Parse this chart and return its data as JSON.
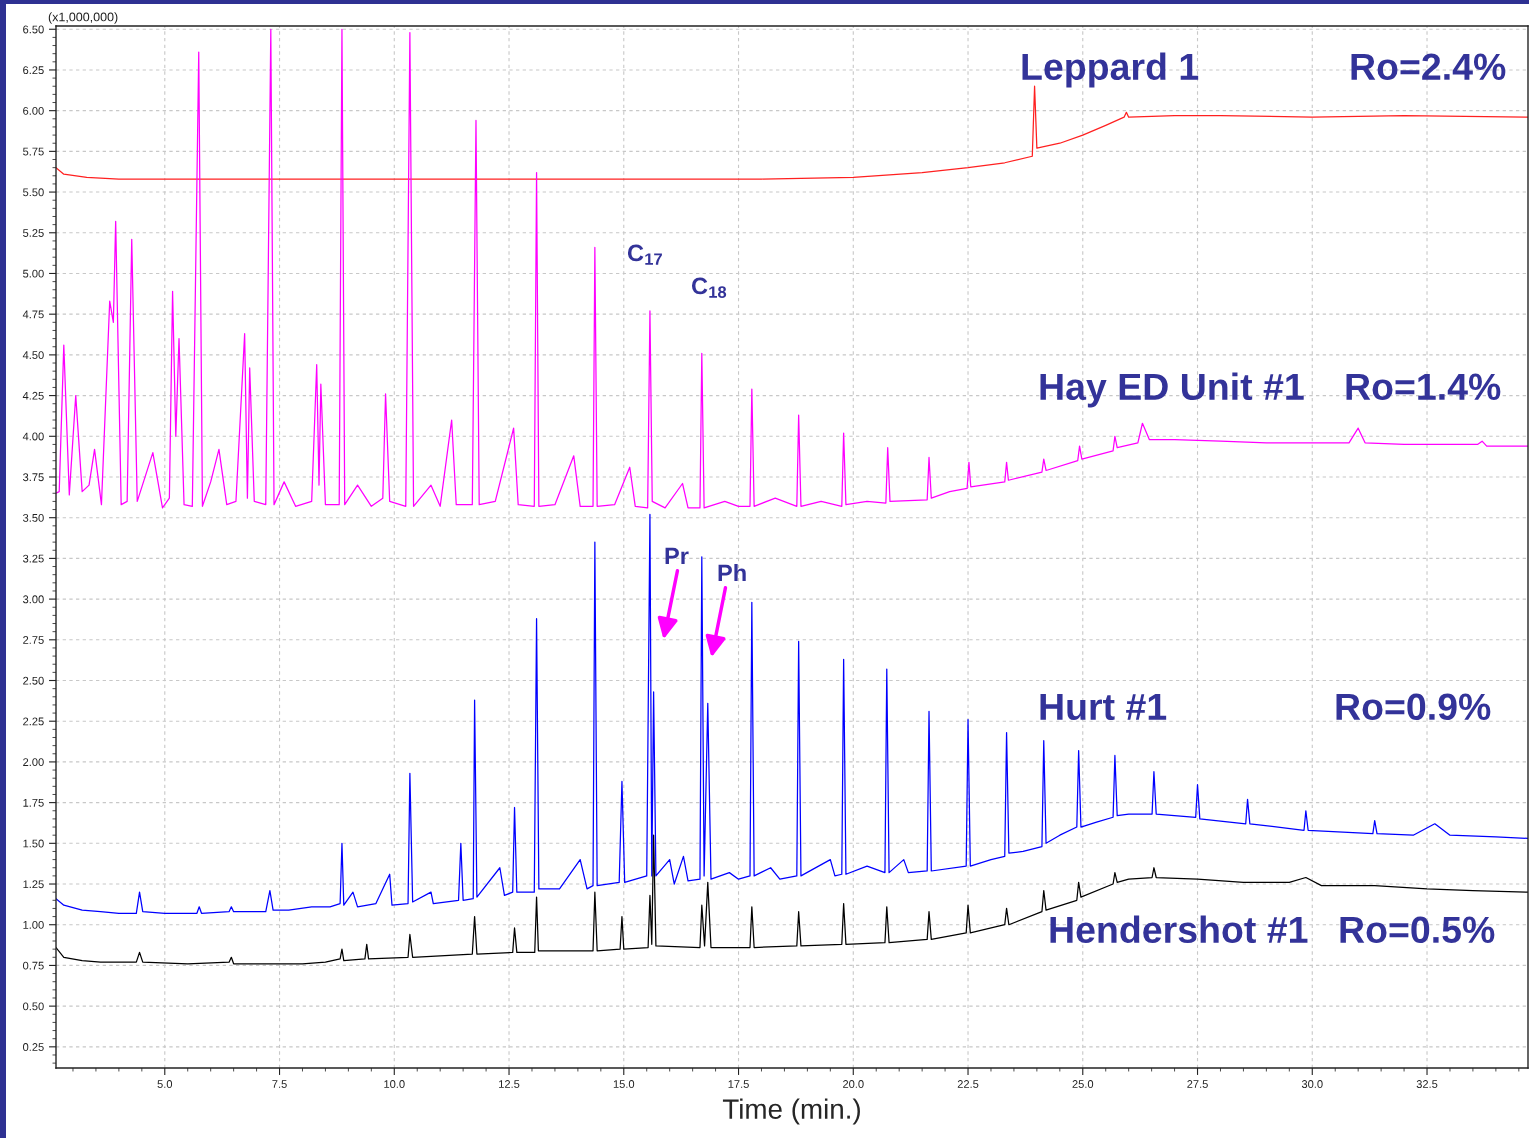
{
  "chart_data": {
    "type": "line",
    "xlabel": "Time (min.)",
    "xlim": [
      2.63,
      34.7
    ],
    "ylim": [
      0.12,
      6.52
    ],
    "xticks": [
      {
        "value": 5,
        "label": "5.0"
      },
      7.5,
      {
        "value": 10,
        "label": "10.0"
      },
      12.5,
      {
        "value": 15,
        "label": "15.0"
      },
      17.5,
      {
        "value": 20,
        "label": "20.0"
      },
      22.5,
      {
        "value": 25,
        "label": "25.0"
      },
      27.5,
      {
        "value": 30,
        "label": "30.0"
      },
      32.5
    ],
    "yticks": [
      {
        "value": 0.25,
        "label": "0.25"
      },
      {
        "value": 0.5,
        "label": "0.50"
      },
      {
        "value": 0.75,
        "label": "0.75"
      },
      {
        "value": 1.0,
        "label": "1.00"
      },
      {
        "value": 1.25,
        "label": "1.25"
      },
      {
        "value": 1.5,
        "label": "1.50"
      },
      {
        "value": 1.75,
        "label": "1.75"
      },
      {
        "value": 2.0,
        "label": "2.00"
      },
      {
        "value": 2.25,
        "label": "2.25"
      },
      {
        "value": 2.5,
        "label": "2.50"
      },
      {
        "value": 2.75,
        "label": "2.75"
      },
      {
        "value": 3.0,
        "label": "3.00"
      },
      {
        "value": 3.25,
        "label": "3.25"
      },
      {
        "value": 3.5,
        "label": "3.50"
      },
      {
        "value": 3.75,
        "label": "3.75"
      },
      {
        "value": 4.0,
        "label": "4.00"
      },
      {
        "value": 4.25,
        "label": "4.25"
      },
      {
        "value": 4.5,
        "label": "4.50"
      },
      {
        "value": 4.75,
        "label": "4.75"
      },
      {
        "value": 5.0,
        "label": "5.00"
      },
      {
        "value": 5.25,
        "label": "5.25"
      },
      {
        "value": 5.5,
        "label": "5.50"
      },
      {
        "value": 5.75,
        "label": "5.75"
      },
      {
        "value": 6.0,
        "label": "6.00"
      },
      {
        "value": 6.25,
        "label": "6.25"
      },
      {
        "value": 6.5,
        "label": "6.50"
      }
    ],
    "grid": true,
    "marker": "none",
    "line_style": "solid",
    "annotations": [
      "(x1,000,000)",
      "Ro=2.4%",
      "Ro=1.4%",
      "Ro=0.9%",
      "Ro=0.5%",
      "C$_{17}$",
      "C$_{18}$",
      "Pr",
      "Ph"
    ],
    "series": [
      {
        "name": "Leppard 1",
        "color": "#ff2020",
        "x": [
          2.63,
          2.8,
          3.3,
          4.0,
          10,
          15,
          18,
          20,
          21.5,
          22.5,
          23.3,
          23.9,
          23.95,
          24.0,
          24.5,
          25.0,
          25.5,
          25.9,
          25.95,
          26.0,
          27.0,
          28.0,
          30.0,
          32.0,
          34.7
        ],
        "values": [
          5.65,
          5.61,
          5.59,
          5.58,
          5.58,
          5.58,
          5.58,
          5.59,
          5.62,
          5.65,
          5.68,
          5.72,
          6.15,
          5.77,
          5.8,
          5.85,
          5.91,
          5.96,
          5.99,
          5.96,
          5.97,
          5.97,
          5.96,
          5.97,
          5.96
        ]
      },
      {
        "name": "Hay ED Unit #1",
        "color": "#ff00ff",
        "x": [
          2.63,
          2.7,
          2.8,
          2.92,
          3.06,
          3.2,
          3.35,
          3.47,
          3.62,
          3.8,
          3.88,
          3.93,
          4.05,
          4.18,
          4.28,
          4.4,
          4.74,
          4.95,
          5.1,
          5.17,
          5.24,
          5.31,
          5.42,
          5.6,
          5.74,
          5.82,
          6.0,
          6.18,
          6.35,
          6.55,
          6.74,
          6.8,
          6.85,
          6.95,
          7.2,
          7.31,
          7.38,
          7.6,
          7.85,
          8.2,
          8.31,
          8.36,
          8.4,
          8.5,
          8.8,
          8.86,
          8.92,
          9.2,
          9.5,
          9.75,
          9.81,
          9.9,
          10.25,
          10.34,
          10.42,
          10.8,
          11.0,
          11.25,
          11.35,
          11.7,
          11.78,
          11.85,
          12.2,
          12.6,
          12.7,
          13.05,
          13.1,
          13.15,
          13.5,
          13.91,
          14.05,
          14.33,
          14.37,
          14.42,
          14.8,
          15.13,
          15.25,
          15.52,
          15.57,
          15.62,
          15.9,
          16.28,
          16.4,
          16.66,
          16.7,
          16.75,
          17.2,
          17.5,
          17.75,
          17.79,
          17.84,
          18.3,
          18.77,
          18.81,
          18.86,
          19.3,
          19.75,
          19.79,
          19.84,
          20.3,
          20.71,
          20.75,
          20.8,
          21.61,
          21.65,
          21.7,
          22.1,
          22.48,
          22.52,
          22.56,
          23.3,
          23.34,
          23.38,
          24.11,
          24.15,
          24.2,
          24.89,
          24.93,
          24.98,
          25.66,
          25.7,
          25.75,
          26.2,
          26.3,
          26.45,
          27.0,
          28.0,
          29.0,
          30.8,
          31.0,
          31.15,
          32.0,
          33.6,
          33.7,
          33.8,
          34.7
        ],
        "values": [
          3.65,
          3.66,
          4.56,
          3.64,
          4.25,
          3.66,
          3.7,
          3.92,
          3.58,
          4.83,
          4.7,
          5.32,
          3.58,
          3.6,
          5.21,
          3.6,
          3.9,
          3.56,
          3.62,
          4.89,
          4.0,
          4.6,
          3.58,
          3.57,
          6.36,
          3.57,
          3.72,
          3.92,
          3.58,
          3.6,
          4.63,
          3.62,
          4.42,
          3.6,
          3.58,
          6.5,
          3.58,
          3.72,
          3.57,
          3.6,
          4.44,
          3.7,
          4.32,
          3.58,
          3.58,
          6.5,
          3.58,
          3.7,
          3.57,
          3.62,
          4.26,
          3.6,
          3.57,
          6.48,
          3.57,
          3.7,
          3.57,
          4.1,
          3.58,
          3.58,
          5.94,
          3.58,
          3.6,
          4.05,
          3.58,
          3.57,
          5.62,
          3.57,
          3.58,
          3.88,
          3.57,
          3.57,
          5.16,
          3.57,
          3.58,
          3.81,
          3.57,
          3.56,
          4.77,
          3.6,
          3.56,
          3.71,
          3.56,
          3.56,
          4.51,
          3.56,
          3.6,
          3.57,
          3.57,
          4.29,
          3.57,
          3.62,
          3.57,
          4.13,
          3.57,
          3.6,
          3.57,
          4.02,
          3.58,
          3.6,
          3.59,
          3.93,
          3.6,
          3.61,
          3.87,
          3.62,
          3.66,
          3.68,
          3.84,
          3.69,
          3.72,
          3.84,
          3.73,
          3.78,
          3.86,
          3.79,
          3.85,
          3.94,
          3.86,
          3.91,
          4.0,
          3.93,
          3.96,
          4.08,
          3.98,
          3.98,
          3.97,
          3.96,
          3.96,
          4.05,
          3.96,
          3.95,
          3.95,
          3.97,
          3.94,
          3.94
        ]
      },
      {
        "name": "Hurt #1",
        "color": "#0000ff",
        "x": [
          2.63,
          2.8,
          3.2,
          3.6,
          4.0,
          4.38,
          4.45,
          4.52,
          5.0,
          5.7,
          5.75,
          5.8,
          6.4,
          6.45,
          6.5,
          7.2,
          7.29,
          7.36,
          7.7,
          8.2,
          8.6,
          8.82,
          8.86,
          8.9,
          9.1,
          9.2,
          9.6,
          9.9,
          9.95,
          10.3,
          10.34,
          10.4,
          10.8,
          10.85,
          11.4,
          11.45,
          11.5,
          11.72,
          11.75,
          11.8,
          12.3,
          12.4,
          12.58,
          12.62,
          12.67,
          13.05,
          13.1,
          13.15,
          13.6,
          14.05,
          14.2,
          14.33,
          14.37,
          14.42,
          14.9,
          14.96,
          15.02,
          15.5,
          15.57,
          15.61,
          15.65,
          15.7,
          16.0,
          16.1,
          16.3,
          16.4,
          16.66,
          16.7,
          16.75,
          16.83,
          16.9,
          17.3,
          17.5,
          17.75,
          17.79,
          17.84,
          18.2,
          18.4,
          18.77,
          18.81,
          18.86,
          19.5,
          19.6,
          19.75,
          19.79,
          19.84,
          20.3,
          20.69,
          20.73,
          20.78,
          21.1,
          21.2,
          21.61,
          21.65,
          21.7,
          22.46,
          22.5,
          22.55,
          23.0,
          23.3,
          23.34,
          23.39,
          23.7,
          24.11,
          24.15,
          24.2,
          24.5,
          24.87,
          24.91,
          24.96,
          25.3,
          25.66,
          25.7,
          25.75,
          26.0,
          26.51,
          26.55,
          26.6,
          27.46,
          27.5,
          27.55,
          28.55,
          28.59,
          28.64,
          29.82,
          29.86,
          29.91,
          31.32,
          31.36,
          31.41,
          32.2,
          32.67,
          33.0,
          34.0,
          34.7
        ],
        "values": [
          1.16,
          1.12,
          1.09,
          1.08,
          1.07,
          1.07,
          1.2,
          1.08,
          1.07,
          1.07,
          1.11,
          1.07,
          1.08,
          1.11,
          1.08,
          1.08,
          1.21,
          1.09,
          1.09,
          1.11,
          1.11,
          1.13,
          1.5,
          1.12,
          1.2,
          1.11,
          1.13,
          1.31,
          1.12,
          1.13,
          1.93,
          1.14,
          1.2,
          1.13,
          1.15,
          1.5,
          1.15,
          1.16,
          2.38,
          1.17,
          1.35,
          1.18,
          1.2,
          1.72,
          1.2,
          1.2,
          2.88,
          1.22,
          1.22,
          1.4,
          1.22,
          1.24,
          3.35,
          1.24,
          1.26,
          1.88,
          1.26,
          1.3,
          3.52,
          1.3,
          2.43,
          1.3,
          1.4,
          1.25,
          1.42,
          1.27,
          1.28,
          3.26,
          1.3,
          2.36,
          1.28,
          1.32,
          1.28,
          1.3,
          2.98,
          1.3,
          1.35,
          1.28,
          1.3,
          2.74,
          1.3,
          1.4,
          1.3,
          1.31,
          2.63,
          1.31,
          1.36,
          1.32,
          2.57,
          1.32,
          1.4,
          1.32,
          1.33,
          2.31,
          1.33,
          1.36,
          2.26,
          1.36,
          1.4,
          1.42,
          2.18,
          1.44,
          1.45,
          1.48,
          2.13,
          1.5,
          1.55,
          1.6,
          2.07,
          1.6,
          1.63,
          1.66,
          2.04,
          1.67,
          1.68,
          1.68,
          1.94,
          1.68,
          1.66,
          1.86,
          1.65,
          1.62,
          1.77,
          1.62,
          1.58,
          1.7,
          1.58,
          1.56,
          1.64,
          1.56,
          1.55,
          1.62,
          1.55,
          1.54,
          1.53
        ]
      },
      {
        "name": "Hendershot #1",
        "color": "#000000",
        "x": [
          2.63,
          2.8,
          3.2,
          3.6,
          4.38,
          4.45,
          4.52,
          5.5,
          6.4,
          6.45,
          6.5,
          8.0,
          8.5,
          8.82,
          8.86,
          8.9,
          9.36,
          9.4,
          9.44,
          10.3,
          10.34,
          10.4,
          11.7,
          11.75,
          11.8,
          12.58,
          12.62,
          12.67,
          13.06,
          13.1,
          13.14,
          14.33,
          14.37,
          14.42,
          14.92,
          14.96,
          15.0,
          15.53,
          15.57,
          15.61,
          15.65,
          15.7,
          16.66,
          16.7,
          16.76,
          16.83,
          16.9,
          17.75,
          17.79,
          17.84,
          18.77,
          18.81,
          18.86,
          19.75,
          19.79,
          19.84,
          20.69,
          20.73,
          20.78,
          21.61,
          21.65,
          21.7,
          22.46,
          22.5,
          22.55,
          23.3,
          23.34,
          23.39,
          24.11,
          24.15,
          24.2,
          24.87,
          24.91,
          24.96,
          25.66,
          25.7,
          25.75,
          26.0,
          26.51,
          26.55,
          26.6,
          27.5,
          28.5,
          29.5,
          29.86,
          30.2,
          31.36,
          32.5,
          33.5,
          34.7
        ],
        "values": [
          0.86,
          0.8,
          0.78,
          0.77,
          0.77,
          0.83,
          0.77,
          0.76,
          0.77,
          0.8,
          0.76,
          0.76,
          0.77,
          0.79,
          0.85,
          0.78,
          0.79,
          0.88,
          0.79,
          0.8,
          0.94,
          0.8,
          0.82,
          1.05,
          0.82,
          0.83,
          0.98,
          0.83,
          0.83,
          1.17,
          0.84,
          0.84,
          1.2,
          0.84,
          0.85,
          1.05,
          0.85,
          0.86,
          1.18,
          0.88,
          1.55,
          0.87,
          0.86,
          1.12,
          0.87,
          1.26,
          0.86,
          0.86,
          1.11,
          0.86,
          0.87,
          1.08,
          0.87,
          0.88,
          1.13,
          0.88,
          0.89,
          1.11,
          0.89,
          0.91,
          1.08,
          0.91,
          0.95,
          1.12,
          0.95,
          1.0,
          1.1,
          1.0,
          1.08,
          1.21,
          1.09,
          1.15,
          1.26,
          1.17,
          1.25,
          1.32,
          1.26,
          1.28,
          1.29,
          1.35,
          1.29,
          1.28,
          1.26,
          1.26,
          1.29,
          1.24,
          1.24,
          1.22,
          1.21,
          1.2
        ]
      }
    ]
  }
}
